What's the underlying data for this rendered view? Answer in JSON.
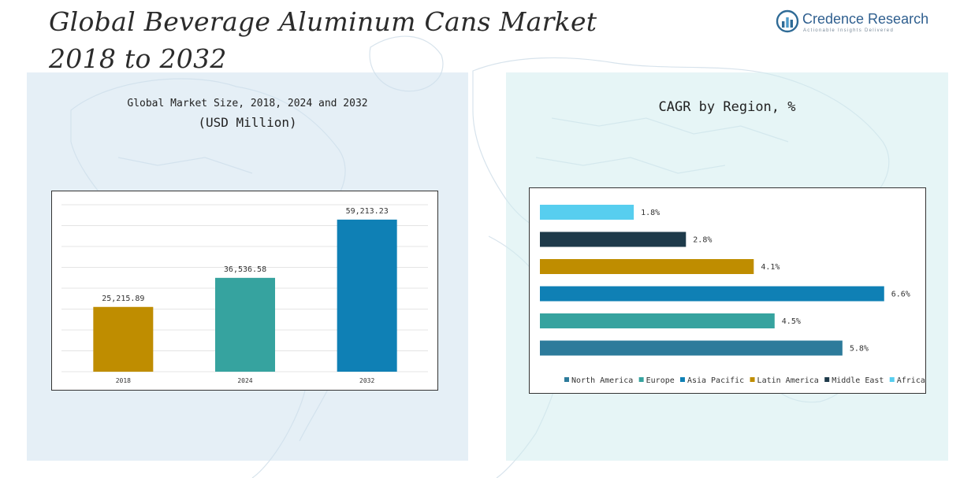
{
  "page": {
    "title_line1": "Global Beverage Aluminum Cans Market",
    "title_line2": "2018 to 2032"
  },
  "logo": {
    "name": "Credence Research",
    "tagline": "Actionable Insights Delivered",
    "icon": "bar-chart-circle-icon"
  },
  "left_panel": {
    "subtitle": "Global Market Size, 2018, 2024 and 2032",
    "unit": "(USD Million)"
  },
  "right_panel": {
    "subtitle": "CAGR by Region, %"
  },
  "chart_data": [
    {
      "type": "bar",
      "orientation": "vertical",
      "title": "Global Market Size, 2018, 2024 and 2032",
      "ylabel": "(USD Million)",
      "categories": [
        "2018",
        "2024",
        "2032"
      ],
      "values": [
        25215.89,
        36536.58,
        59213.23
      ],
      "data_labels": [
        "25,215.89",
        "36,536.58",
        "59,213.23"
      ],
      "colors": [
        "#bf8d00",
        "#36a39f",
        "#0f80b5"
      ],
      "ylim": [
        0,
        65000
      ],
      "grid": true,
      "legend": "none"
    },
    {
      "type": "bar",
      "orientation": "horizontal",
      "title": "CAGR by Region, %",
      "categories": [
        "Africa",
        "Middle East",
        "Latin America",
        "Asia Pacific",
        "Europe",
        "North America"
      ],
      "values": [
        1.8,
        2.8,
        4.1,
        6.6,
        4.5,
        5.8
      ],
      "data_labels": [
        "1.8%",
        "2.8%",
        "4.1%",
        "6.6%",
        "4.5%",
        "5.8%"
      ],
      "colors": [
        "#57ceef",
        "#1e3a4a",
        "#bf8d00",
        "#0f80b5",
        "#36a39f",
        "#2d7b9b"
      ],
      "legend_order": [
        "North America",
        "Europe",
        "Asia Pacific",
        "Latin America",
        "Middle East",
        "Africa"
      ],
      "legend_colors": [
        "#2d7b9b",
        "#36a39f",
        "#0f80b5",
        "#bf8d00",
        "#1e3a4a",
        "#57ceef"
      ],
      "xlim": [
        0,
        6.8
      ],
      "grid": false,
      "legend": "bottom"
    }
  ]
}
